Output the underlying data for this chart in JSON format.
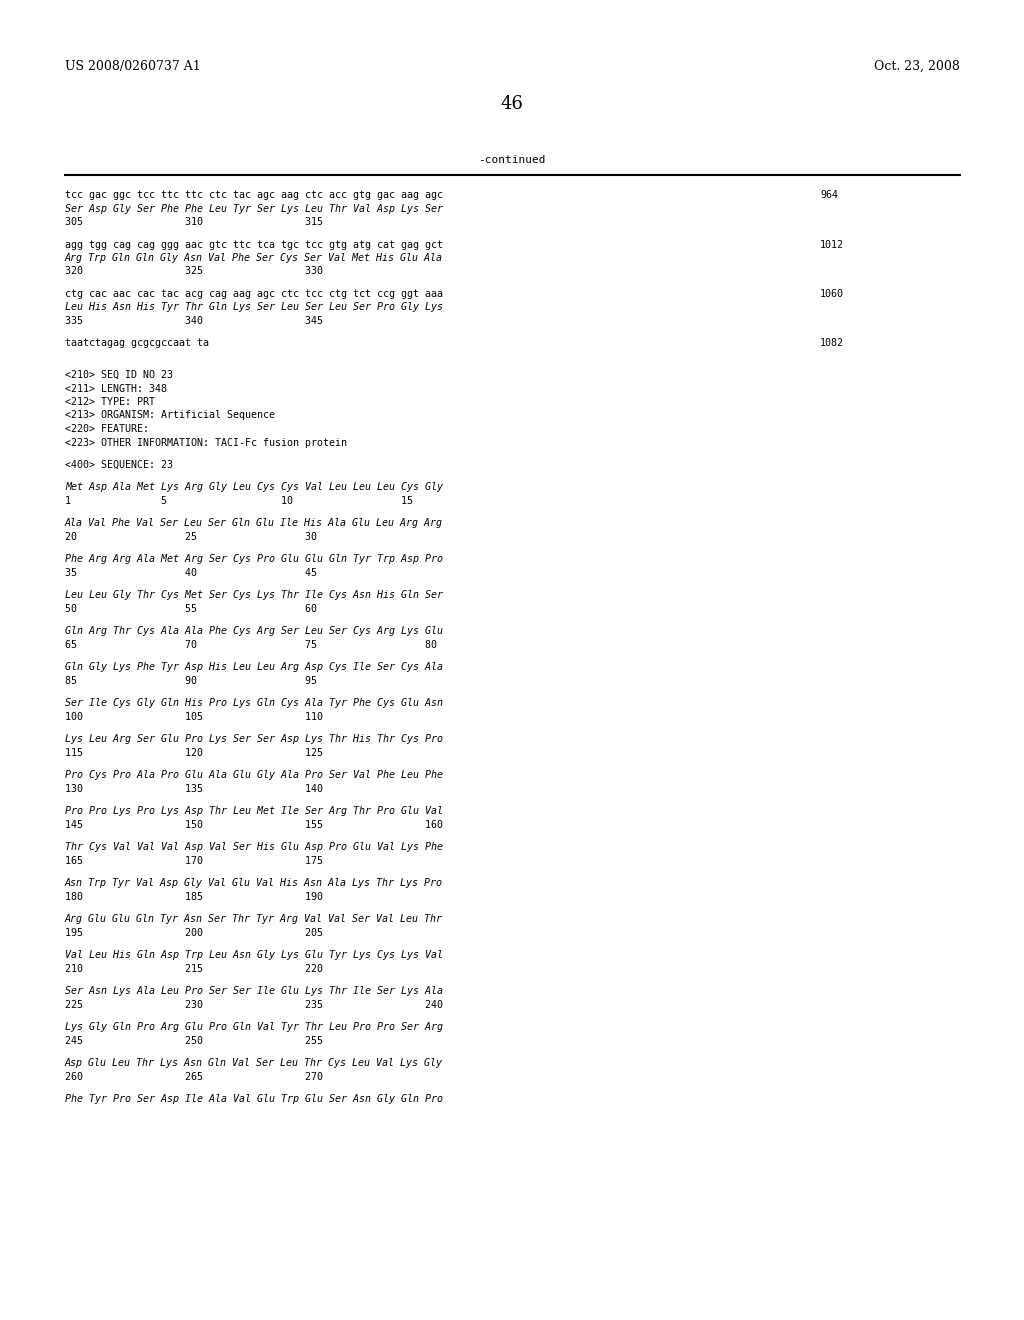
{
  "background_color": "#ffffff",
  "header_left": "US 2008/0260737 A1",
  "header_right": "Oct. 23, 2008",
  "page_number": "46",
  "continued_label": "-continued",
  "font_size_mono": 7.2,
  "font_size_header": 9,
  "font_size_page_num": 13,
  "content_lines": [
    {
      "text": "tcc gac ggc tcc ttc ttc ctc tac agc aag ctc acc gtg gac aag agc",
      "type": "mono",
      "num": "964"
    },
    {
      "text": "Ser Asp Gly Ser Phe Phe Leu Tyr Ser Lys Leu Thr Val Asp Lys Ser",
      "type": "italic",
      "num": null
    },
    {
      "text": "305                 310                 315",
      "type": "mono",
      "num": null
    },
    {
      "text": "",
      "type": "blank",
      "num": null
    },
    {
      "text": "agg tgg cag cag ggg aac gtc ttc tca tgc tcc gtg atg cat gag gct",
      "type": "mono",
      "num": "1012"
    },
    {
      "text": "Arg Trp Gln Gln Gly Asn Val Phe Ser Cys Ser Val Met His Glu Ala",
      "type": "italic",
      "num": null
    },
    {
      "text": "320                 325                 330",
      "type": "mono",
      "num": null
    },
    {
      "text": "",
      "type": "blank",
      "num": null
    },
    {
      "text": "ctg cac aac cac tac acg cag aag agc ctc tcc ctg tct ccg ggt aaa",
      "type": "mono",
      "num": "1060"
    },
    {
      "text": "Leu His Asn His Tyr Thr Gln Lys Ser Leu Ser Leu Ser Pro Gly Lys",
      "type": "italic",
      "num": null
    },
    {
      "text": "335                 340                 345",
      "type": "mono",
      "num": null
    },
    {
      "text": "",
      "type": "blank",
      "num": null
    },
    {
      "text": "taatctagag gcgcgccaat ta",
      "type": "mono",
      "num": "1082"
    },
    {
      "text": "",
      "type": "blank",
      "num": null
    },
    {
      "text": "",
      "type": "blank",
      "num": null
    },
    {
      "text": "<210> SEQ ID NO 23",
      "type": "mono",
      "num": null
    },
    {
      "text": "<211> LENGTH: 348",
      "type": "mono",
      "num": null
    },
    {
      "text": "<212> TYPE: PRT",
      "type": "mono",
      "num": null
    },
    {
      "text": "<213> ORGANISM: Artificial Sequence",
      "type": "mono",
      "num": null
    },
    {
      "text": "<220> FEATURE:",
      "type": "mono",
      "num": null
    },
    {
      "text": "<223> OTHER INFORMATION: TACI-Fc fusion protein",
      "type": "mono",
      "num": null
    },
    {
      "text": "",
      "type": "blank",
      "num": null
    },
    {
      "text": "<400> SEQUENCE: 23",
      "type": "mono",
      "num": null
    },
    {
      "text": "",
      "type": "blank",
      "num": null
    },
    {
      "text": "Met Asp Ala Met Lys Arg Gly Leu Cys Cys Val Leu Leu Leu Cys Gly",
      "type": "italic",
      "num": null
    },
    {
      "text": "1               5                   10                  15",
      "type": "mono",
      "num": null
    },
    {
      "text": "",
      "type": "blank",
      "num": null
    },
    {
      "text": "Ala Val Phe Val Ser Leu Ser Gln Glu Ile His Ala Glu Leu Arg Arg",
      "type": "italic",
      "num": null
    },
    {
      "text": "20                  25                  30",
      "type": "mono",
      "num": null
    },
    {
      "text": "",
      "type": "blank",
      "num": null
    },
    {
      "text": "Phe Arg Arg Ala Met Arg Ser Cys Pro Glu Glu Gln Tyr Trp Asp Pro",
      "type": "italic",
      "num": null
    },
    {
      "text": "35                  40                  45",
      "type": "mono",
      "num": null
    },
    {
      "text": "",
      "type": "blank",
      "num": null
    },
    {
      "text": "Leu Leu Gly Thr Cys Met Ser Cys Lys Thr Ile Cys Asn His Gln Ser",
      "type": "italic",
      "num": null
    },
    {
      "text": "50                  55                  60",
      "type": "mono",
      "num": null
    },
    {
      "text": "",
      "type": "blank",
      "num": null
    },
    {
      "text": "Gln Arg Thr Cys Ala Ala Phe Cys Arg Ser Leu Ser Cys Arg Lys Glu",
      "type": "italic",
      "num": null
    },
    {
      "text": "65                  70                  75                  80",
      "type": "mono",
      "num": null
    },
    {
      "text": "",
      "type": "blank",
      "num": null
    },
    {
      "text": "Gln Gly Lys Phe Tyr Asp His Leu Leu Arg Asp Cys Ile Ser Cys Ala",
      "type": "italic",
      "num": null
    },
    {
      "text": "85                  90                  95",
      "type": "mono",
      "num": null
    },
    {
      "text": "",
      "type": "blank",
      "num": null
    },
    {
      "text": "Ser Ile Cys Gly Gln His Pro Lys Gln Cys Ala Tyr Phe Cys Glu Asn",
      "type": "italic",
      "num": null
    },
    {
      "text": "100                 105                 110",
      "type": "mono",
      "num": null
    },
    {
      "text": "",
      "type": "blank",
      "num": null
    },
    {
      "text": "Lys Leu Arg Ser Glu Pro Lys Ser Ser Asp Lys Thr His Thr Cys Pro",
      "type": "italic",
      "num": null
    },
    {
      "text": "115                 120                 125",
      "type": "mono",
      "num": null
    },
    {
      "text": "",
      "type": "blank",
      "num": null
    },
    {
      "text": "Pro Cys Pro Ala Pro Glu Ala Glu Gly Ala Pro Ser Val Phe Leu Phe",
      "type": "italic",
      "num": null
    },
    {
      "text": "130                 135                 140",
      "type": "mono",
      "num": null
    },
    {
      "text": "",
      "type": "blank",
      "num": null
    },
    {
      "text": "Pro Pro Lys Pro Lys Asp Thr Leu Met Ile Ser Arg Thr Pro Glu Val",
      "type": "italic",
      "num": null
    },
    {
      "text": "145                 150                 155                 160",
      "type": "mono",
      "num": null
    },
    {
      "text": "",
      "type": "blank",
      "num": null
    },
    {
      "text": "Thr Cys Val Val Val Asp Val Ser His Glu Asp Pro Glu Val Lys Phe",
      "type": "italic",
      "num": null
    },
    {
      "text": "165                 170                 175",
      "type": "mono",
      "num": null
    },
    {
      "text": "",
      "type": "blank",
      "num": null
    },
    {
      "text": "Asn Trp Tyr Val Asp Gly Val Glu Val His Asn Ala Lys Thr Lys Pro",
      "type": "italic",
      "num": null
    },
    {
      "text": "180                 185                 190",
      "type": "mono",
      "num": null
    },
    {
      "text": "",
      "type": "blank",
      "num": null
    },
    {
      "text": "Arg Glu Glu Gln Tyr Asn Ser Thr Tyr Arg Val Val Ser Val Leu Thr",
      "type": "italic",
      "num": null
    },
    {
      "text": "195                 200                 205",
      "type": "mono",
      "num": null
    },
    {
      "text": "",
      "type": "blank",
      "num": null
    },
    {
      "text": "Val Leu His Gln Asp Trp Leu Asn Gly Lys Glu Tyr Lys Cys Lys Val",
      "type": "italic",
      "num": null
    },
    {
      "text": "210                 215                 220",
      "type": "mono",
      "num": null
    },
    {
      "text": "",
      "type": "blank",
      "num": null
    },
    {
      "text": "Ser Asn Lys Ala Leu Pro Ser Ser Ile Glu Lys Thr Ile Ser Lys Ala",
      "type": "italic",
      "num": null
    },
    {
      "text": "225                 230                 235                 240",
      "type": "mono",
      "num": null
    },
    {
      "text": "",
      "type": "blank",
      "num": null
    },
    {
      "text": "Lys Gly Gln Pro Arg Glu Pro Gln Val Tyr Thr Leu Pro Pro Ser Arg",
      "type": "italic",
      "num": null
    },
    {
      "text": "245                 250                 255",
      "type": "mono",
      "num": null
    },
    {
      "text": "",
      "type": "blank",
      "num": null
    },
    {
      "text": "Asp Glu Leu Thr Lys Asn Gln Val Ser Leu Thr Cys Leu Val Lys Gly",
      "type": "italic",
      "num": null
    },
    {
      "text": "260                 265                 270",
      "type": "mono",
      "num": null
    },
    {
      "text": "",
      "type": "blank",
      "num": null
    },
    {
      "text": "Phe Tyr Pro Ser Asp Ile Ala Val Glu Trp Glu Ser Asn Gly Gln Pro",
      "type": "italic",
      "num": null
    }
  ]
}
